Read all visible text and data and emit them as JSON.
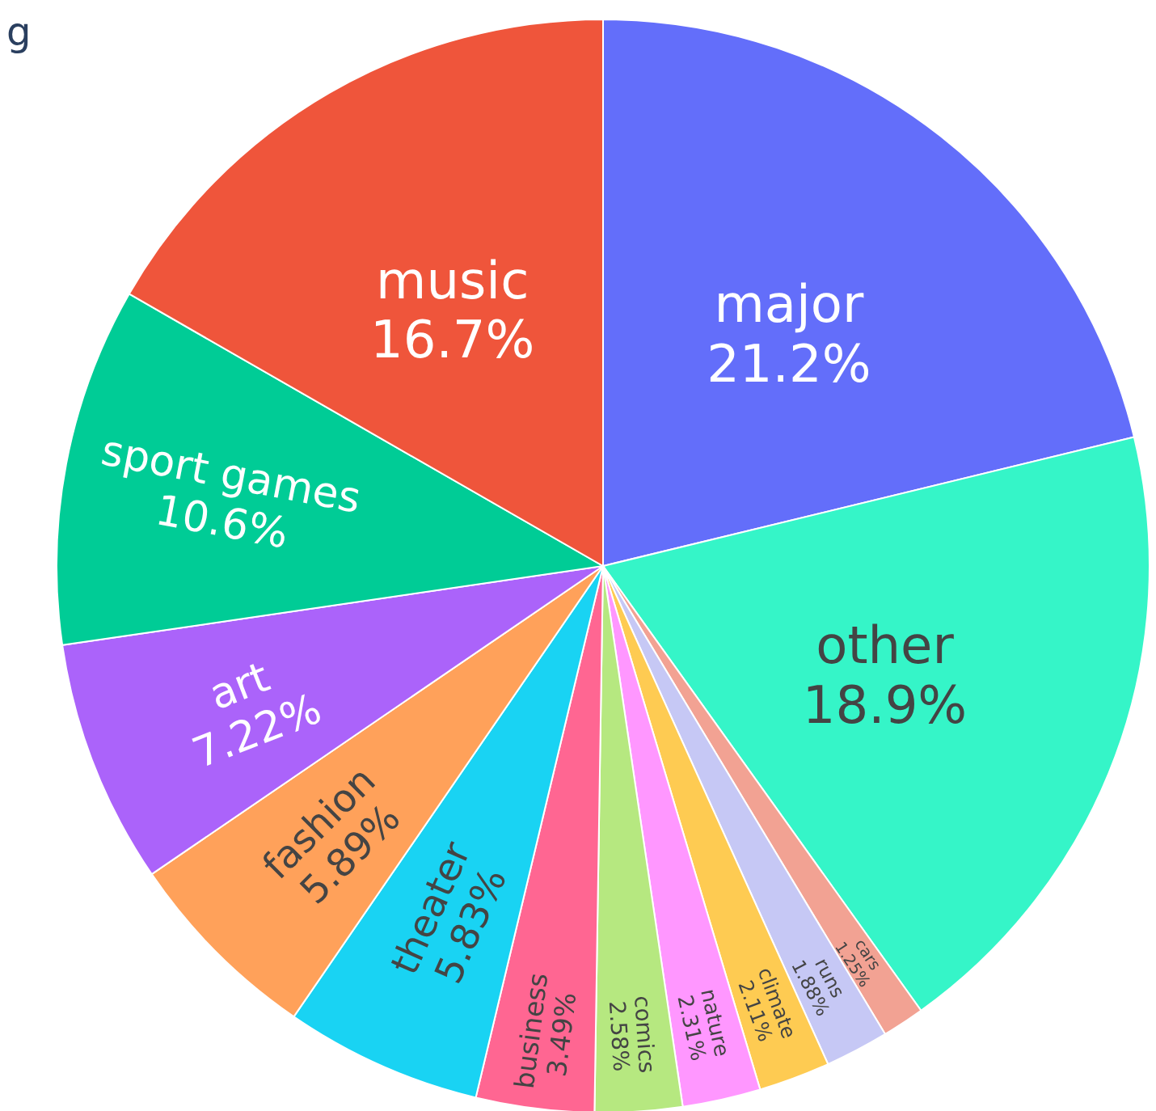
{
  "chart_data": {
    "type": "pie",
    "title": "g",
    "categories": [
      "major",
      "other",
      "cars",
      "runs",
      "climate",
      "nature",
      "comics",
      "business",
      "theater",
      "fashion",
      "art",
      "sport games",
      "music"
    ],
    "values": [
      21.2,
      18.9,
      1.25,
      1.88,
      2.11,
      2.31,
      2.58,
      3.49,
      5.83,
      5.89,
      7.22,
      10.6,
      16.7
    ],
    "value_labels": [
      "21.2%",
      "18.9%",
      "1.25%",
      "1.88%",
      "2.11%",
      "2.31%",
      "2.58%",
      "3.49%",
      "5.83%",
      "5.89%",
      "7.22%",
      "10.6%",
      "16.7%"
    ],
    "colors": [
      "#636efa",
      "#35f5c8",
      "#f2a293",
      "#c6c8f5",
      "#fecb52",
      "#ff97ff",
      "#b6e880",
      "#ff6692",
      "#19d3f3",
      "#ffa15a",
      "#ab63fa",
      "#00cc96",
      "#ef553b"
    ]
  }
}
